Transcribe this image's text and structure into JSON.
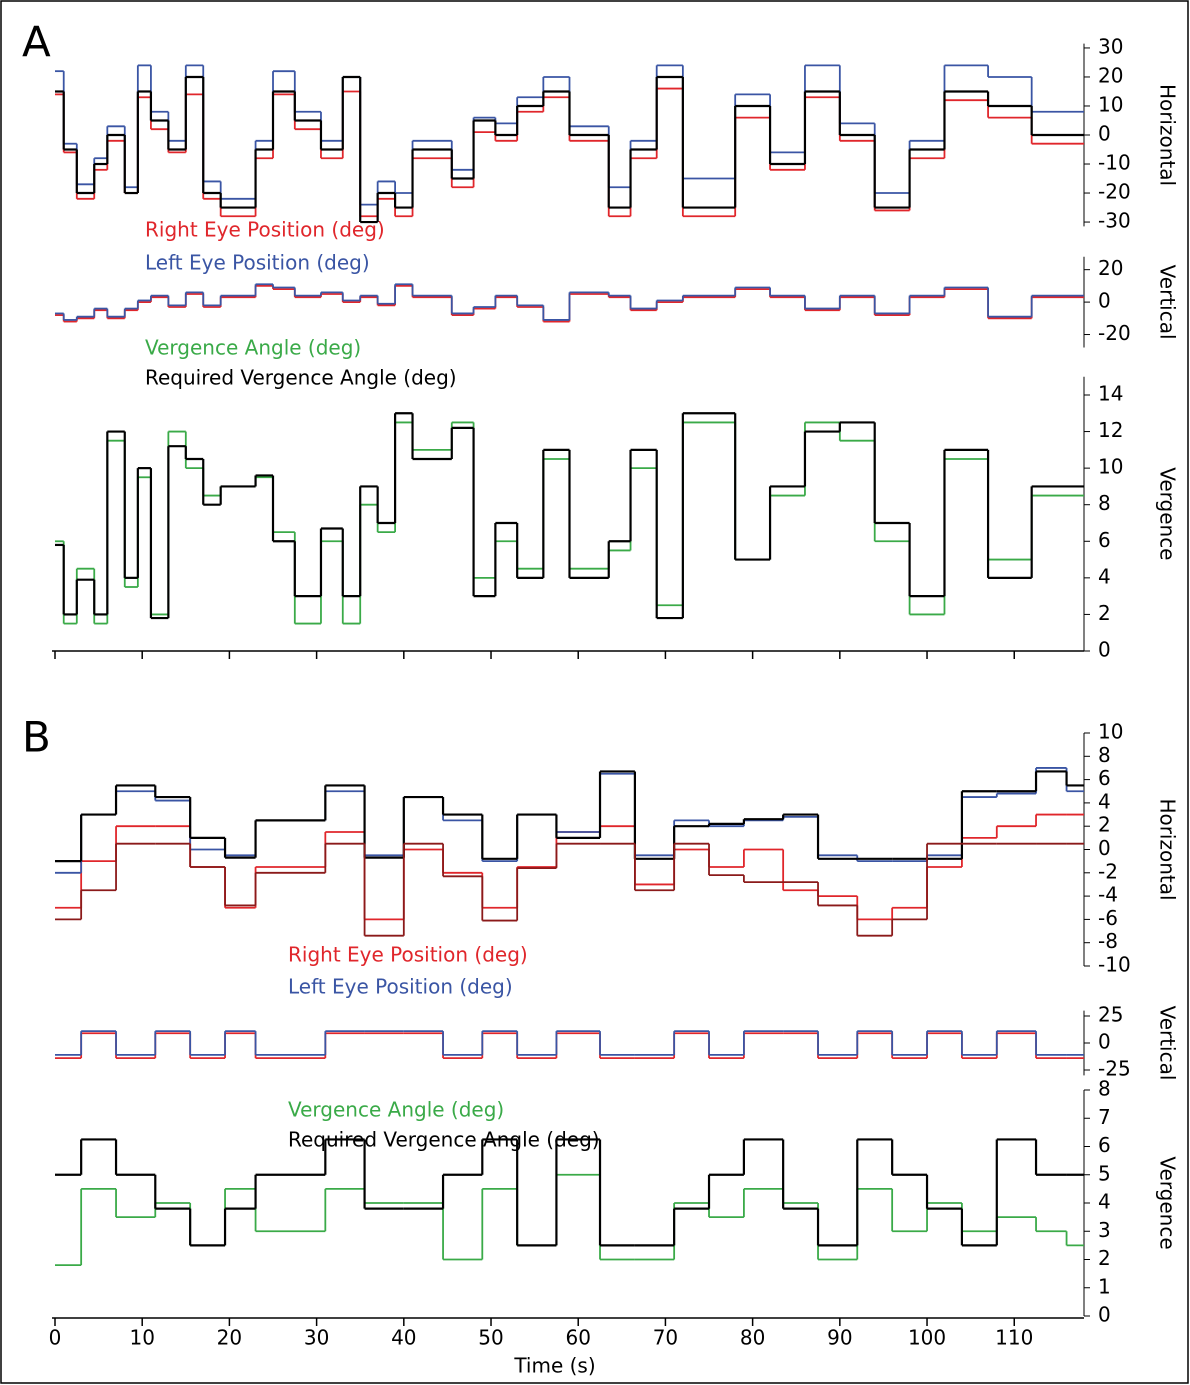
{
  "chart_data": [
    {
      "type": "line",
      "panel": "A",
      "ylabel": "Horizontal",
      "drawstyle": "steps-post",
      "xlim": [
        0,
        118
      ],
      "ylim": [
        -31.5,
        31.5
      ],
      "yticks": [
        30,
        20,
        10,
        0,
        -10,
        -20,
        -30
      ],
      "x": [
        0,
        1,
        2.5,
        4.5,
        6,
        8,
        9.5,
        11,
        13,
        15,
        17,
        19,
        23,
        25,
        27.5,
        30.5,
        33,
        35,
        37,
        39,
        41,
        45.5,
        48,
        50.5,
        53,
        56,
        59,
        63.5,
        66,
        69,
        72,
        78,
        82,
        86,
        90,
        94,
        98,
        102,
        107,
        112
      ],
      "series": [
        {
          "name": "Right Eye Position (deg)",
          "color": "#e0262b",
          "values": [
            14,
            -6,
            -22,
            -12,
            -2,
            -20,
            13,
            2,
            -6,
            14,
            -22,
            -28,
            -8,
            14,
            2,
            -8,
            15,
            -28,
            -22,
            -28,
            -8,
            -18,
            1,
            -2,
            8,
            13,
            -2,
            -28,
            -8,
            16,
            -28,
            6,
            -12,
            13,
            -2,
            -26,
            -8,
            12,
            6,
            -3
          ]
        },
        {
          "name": "Left Eye Position (deg)",
          "color": "#3a55a4",
          "values": [
            22,
            -3,
            -17,
            -8,
            3,
            -18,
            24,
            8,
            -2,
            24,
            -16,
            -22,
            -2,
            22,
            8,
            -2,
            20,
            -24,
            -16,
            -20,
            -2,
            -12,
            6,
            4,
            13,
            20,
            3,
            -18,
            -2,
            24,
            -15,
            14,
            -6,
            24,
            4,
            -20,
            -2,
            24,
            20,
            8
          ]
        },
        {
          "color": "#000000",
          "values": [
            15,
            -5,
            -20,
            -10,
            0,
            -20,
            15,
            5,
            -5,
            20,
            -20,
            -25,
            -5,
            15,
            5,
            -5,
            20,
            -30,
            -20,
            -25,
            -5,
            -15,
            5,
            0,
            10,
            15,
            0,
            -25,
            -5,
            20,
            -25,
            10,
            -10,
            15,
            0,
            -25,
            -5,
            15,
            10,
            0
          ]
        }
      ]
    },
    {
      "type": "line",
      "ylabel": "Vertical",
      "drawstyle": "steps-post",
      "xlim": [
        0,
        118
      ],
      "ylim": [
        -28,
        28
      ],
      "yticks": [
        20,
        0,
        -20
      ],
      "x": [
        0,
        1,
        2.5,
        4.5,
        6,
        8,
        9.5,
        11,
        13,
        15,
        17,
        19,
        23,
        25,
        27.5,
        30.5,
        33,
        35,
        37,
        39,
        41,
        45.5,
        48,
        50.5,
        53,
        56,
        59,
        63.5,
        66,
        69,
        72,
        78,
        82,
        86,
        90,
        94,
        98,
        102,
        107,
        112
      ],
      "series": [
        {
          "color": "#e0262b",
          "values": [
            -8,
            -12,
            -10,
            -5,
            -10,
            -5,
            0,
            3,
            -3,
            5,
            -3,
            3,
            10,
            8,
            3,
            5,
            0,
            3,
            -2,
            10,
            3,
            -8,
            -4,
            3,
            -3,
            -12,
            5,
            3,
            -5,
            0,
            3,
            8,
            3,
            -5,
            3,
            -8,
            3,
            8,
            -10,
            3
          ]
        },
        {
          "color": "#3a55a4",
          "values": [
            -7,
            -11,
            -9,
            -4,
            -9,
            -4,
            1,
            4,
            -2,
            6,
            -2,
            4,
            11,
            9,
            4,
            6,
            1,
            4,
            -1,
            11,
            4,
            -7,
            -3,
            4,
            -2,
            -11,
            6,
            4,
            -4,
            1,
            4,
            9,
            4,
            -4,
            4,
            -7,
            4,
            9,
            -9,
            4
          ]
        }
      ]
    },
    {
      "type": "line",
      "ylabel": "Vergence",
      "drawstyle": "steps-post",
      "xlim": [
        0,
        118
      ],
      "ylim": [
        0,
        15
      ],
      "yticks": [
        14,
        12,
        10,
        8,
        6,
        4,
        2,
        0
      ],
      "x": [
        0,
        1,
        2.5,
        4.5,
        6,
        8,
        9.5,
        11,
        13,
        15,
        17,
        19,
        23,
        25,
        27.5,
        30.5,
        33,
        35,
        37,
        39,
        41,
        45.5,
        48,
        50.5,
        53,
        56,
        59,
        63.5,
        66,
        69,
        72,
        78,
        82,
        86,
        90,
        94,
        98,
        102,
        107,
        112
      ],
      "series": [
        {
          "name": "Vergence Angle (deg)",
          "color": "#3aaa48",
          "values": [
            6,
            1.5,
            4.5,
            1.5,
            11.5,
            3.5,
            9.5,
            2,
            12,
            10,
            8.5,
            9,
            9.5,
            6.5,
            1.5,
            6,
            1.5,
            8,
            6.5,
            12.5,
            11,
            12.5,
            4,
            6,
            4.5,
            10.5,
            4.5,
            5.5,
            10,
            2.5,
            12.5,
            5,
            8.5,
            12.5,
            11.5,
            6,
            2,
            10.5,
            5,
            8.5
          ]
        },
        {
          "name": "Required Vergence Angle (deg)",
          "color": "#000000",
          "values": [
            5.8,
            2,
            3.9,
            2,
            12,
            4,
            10,
            1.8,
            11.2,
            10.5,
            8,
            9,
            9.6,
            6,
            3,
            6.7,
            3,
            9,
            7,
            13,
            10.5,
            12.2,
            3,
            7,
            4,
            11,
            4,
            6,
            11,
            1.8,
            13,
            5,
            9,
            12,
            12.5,
            7,
            3,
            11,
            4,
            9
          ]
        }
      ]
    },
    {
      "type": "line",
      "panel": "B",
      "ylabel": "Horizontal",
      "drawstyle": "steps-post",
      "xlim": [
        0,
        118
      ],
      "ylim": [
        -10,
        10
      ],
      "yticks": [
        10,
        8,
        6,
        4,
        2,
        0,
        -2,
        -4,
        -6,
        -8,
        -10
      ],
      "x": [
        0,
        3,
        7,
        11.5,
        15.5,
        19.5,
        23,
        31,
        35.5,
        40,
        44.5,
        49,
        53,
        57.5,
        62.5,
        66.5,
        71,
        75,
        79,
        83.5,
        87.5,
        92,
        96,
        100,
        104,
        108,
        112.5,
        116
      ],
      "series": [
        {
          "name": "Right Eye Position (deg)",
          "color": "#e0262b",
          "values": [
            -5,
            -1,
            2,
            2,
            -1.5,
            -5,
            -1.5,
            1.5,
            -6,
            0,
            -2,
            -5,
            -1.5,
            1.5,
            2,
            -3,
            0,
            -1.5,
            0,
            -3.5,
            -4,
            -6,
            -5,
            -1.5,
            1,
            2,
            3,
            3
          ]
        },
        {
          "name": "Left Eye Position (deg)",
          "color": "#3a55a4",
          "values": [
            -2,
            3,
            5,
            4.2,
            0,
            -0.5,
            2.5,
            5,
            -0.5,
            4.5,
            2.5,
            -1,
            3,
            1.5,
            6.5,
            -0.5,
            2.5,
            2,
            2.5,
            2.8,
            -0.5,
            -1,
            -1,
            -0.5,
            4.5,
            4.8,
            7,
            5
          ]
        },
        {
          "color": "#000000",
          "values": [
            -1,
            3,
            5.5,
            4.5,
            1,
            -0.7,
            2.5,
            5.5,
            -0.7,
            4.5,
            3,
            -0.8,
            3,
            1,
            6.7,
            -0.8,
            2,
            2.2,
            2.6,
            3,
            -0.8,
            -0.8,
            -0.8,
            -0.8,
            5,
            5,
            6.7,
            5.5
          ]
        },
        {
          "color": "#8b1a1a",
          "values": [
            -6,
            -3.5,
            0.5,
            0.5,
            -1.5,
            -4.8,
            -2,
            0.5,
            -7.4,
            0.5,
            -2.3,
            -6.1,
            -1.6,
            0.5,
            0.5,
            -3.5,
            0.5,
            -2.2,
            -2.8,
            -2.8,
            -4.8,
            -7.4,
            -6,
            0.5,
            0.5,
            0.5,
            0.5,
            0.5
          ]
        }
      ]
    },
    {
      "type": "line",
      "ylabel": "Vertical",
      "drawstyle": "steps-post",
      "xlim": [
        0,
        118
      ],
      "ylim": [
        -30,
        30
      ],
      "yticks": [
        25,
        0,
        -25
      ],
      "x": [
        0,
        3,
        7,
        11.5,
        15.5,
        19.5,
        23,
        31,
        35.5,
        40,
        44.5,
        49,
        53,
        57.5,
        62.5,
        66.5,
        71,
        75,
        79,
        83.5,
        87.5,
        92,
        96,
        100,
        104,
        108,
        112.5,
        116
      ],
      "series": [
        {
          "color": "#e0262b",
          "values": [
            -14,
            9,
            -14,
            9,
            -14,
            9,
            -14,
            9,
            9,
            9,
            -14,
            9,
            -14,
            9,
            -14,
            -14,
            9,
            -14,
            9,
            9,
            -14,
            9,
            -14,
            9,
            -14,
            9,
            -14,
            -14
          ]
        },
        {
          "color": "#3a55a4",
          "values": [
            -11,
            11,
            -11,
            11,
            -11,
            11,
            -11,
            11,
            11,
            11,
            -11,
            11,
            -11,
            11,
            -11,
            -11,
            11,
            -11,
            11,
            11,
            -11,
            11,
            -11,
            11,
            -11,
            11,
            -11,
            -11
          ]
        }
      ]
    },
    {
      "type": "line",
      "ylabel": "Vergence",
      "xlabel": "Time (s)",
      "drawstyle": "steps-post",
      "xlim": [
        0,
        118
      ],
      "xticks": [
        0,
        10,
        20,
        30,
        40,
        50,
        60,
        70,
        80,
        90,
        100,
        110
      ],
      "ylim": [
        0,
        8
      ],
      "yticks": [
        8,
        7,
        6,
        5,
        4,
        3,
        2,
        1,
        0
      ],
      "x": [
        0,
        3,
        7,
        11.5,
        15.5,
        19.5,
        23,
        31,
        35.5,
        40,
        44.5,
        49,
        53,
        57.5,
        62.5,
        66.5,
        71,
        75,
        79,
        83.5,
        87.5,
        92,
        96,
        100,
        104,
        108,
        112.5,
        116
      ],
      "series": [
        {
          "name": "Vergence Angle (deg)",
          "color": "#3aaa48",
          "values": [
            1.8,
            4.5,
            3.5,
            4,
            2.5,
            4.5,
            3,
            4.5,
            4,
            4,
            2,
            4.5,
            2.5,
            5,
            2,
            2,
            4,
            3.5,
            4.5,
            4,
            2,
            4.5,
            3,
            4,
            3,
            3.5,
            3,
            2.5
          ]
        },
        {
          "name": "Required Vergence Angle (deg)",
          "color": "#000000",
          "values": [
            5,
            6.25,
            5,
            3.8,
            2.5,
            3.8,
            5,
            6.25,
            3.8,
            3.8,
            5,
            6.25,
            2.5,
            6.25,
            2.5,
            2.5,
            3.8,
            5,
            6.25,
            3.8,
            2.5,
            6.25,
            5,
            3.8,
            2.5,
            6.25,
            5,
            5
          ]
        }
      ]
    }
  ]
}
